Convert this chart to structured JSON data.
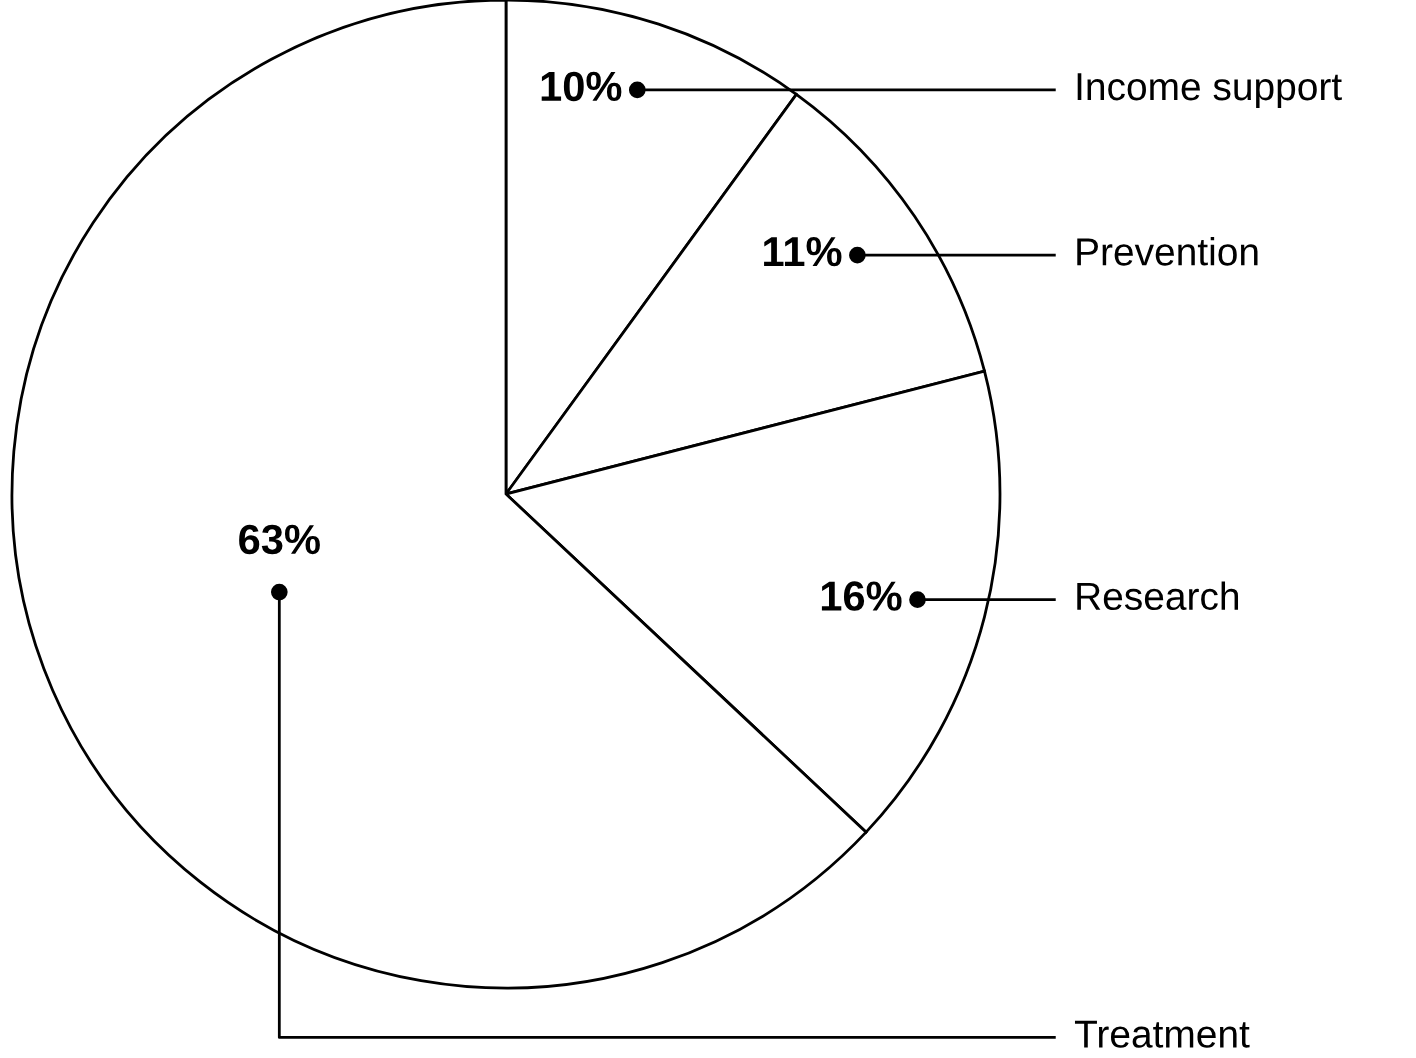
{
  "chart_data": {
    "type": "pie",
    "categories": [
      "Income support",
      "Prevention",
      "Research",
      "Treatment"
    ],
    "values": [
      10,
      11,
      16,
      63
    ],
    "colors": [
      "#ffffff",
      "#ffffff",
      "#ffffff",
      "#ffffff"
    ],
    "value_labels": [
      "10%",
      "11%",
      "16%",
      "63%"
    ]
  }
}
